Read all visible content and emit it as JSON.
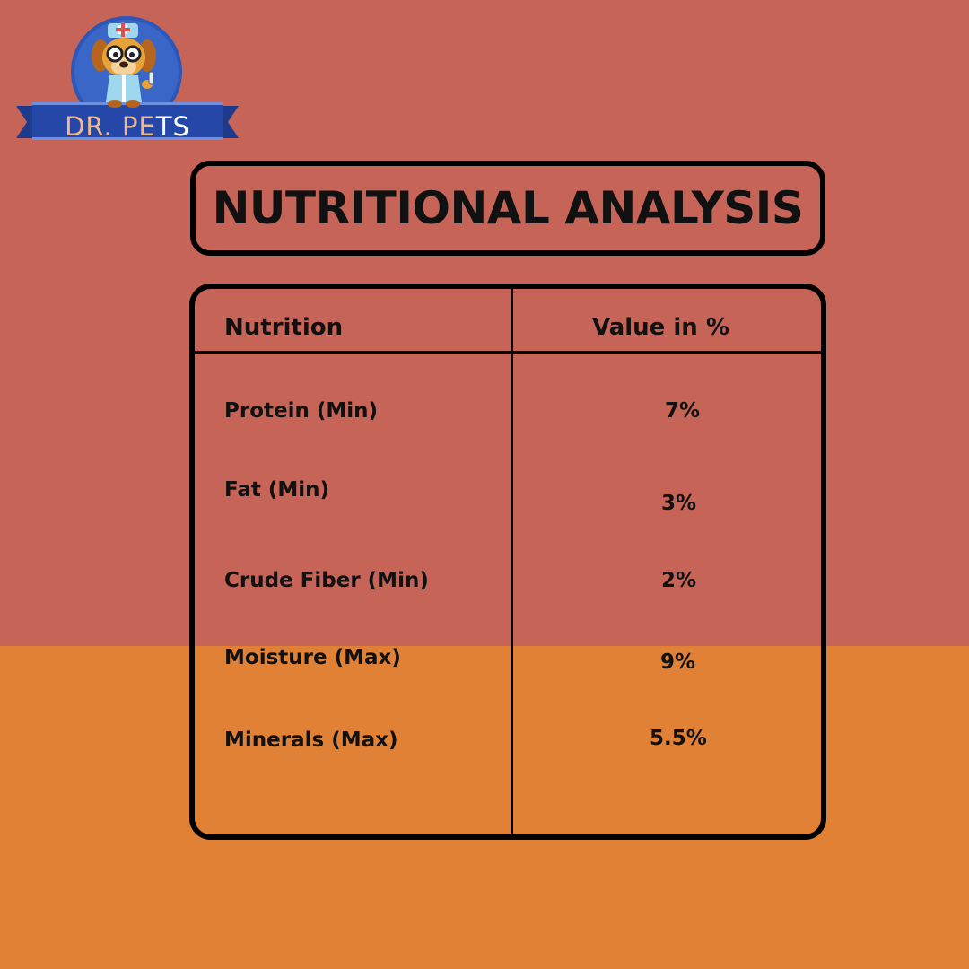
{
  "colors": {
    "background_top": "#c66557",
    "background_bottom": "#e08136",
    "border": "#000000",
    "text": "#111111",
    "logo_circle": "#2c56b8",
    "logo_ribbon": "#2548a8"
  },
  "logo": {
    "text_main": "DR. PE",
    "text_accent": "TS",
    "icon": "doctor-dog-icon"
  },
  "title": "NUTRITIONAL ANALYSIS",
  "table": {
    "headers": [
      "Nutrition",
      "Value in %"
    ],
    "rows": [
      {
        "nutrient": "Protein (Min)",
        "value": "7%"
      },
      {
        "nutrient": "Fat (Min)",
        "value": "3%"
      },
      {
        "nutrient": "Crude Fiber (Min)",
        "value": "2%"
      },
      {
        "nutrient": "Moisture (Max)",
        "value": "9%"
      },
      {
        "nutrient": "Minerals (Max)",
        "value": "5.5%"
      }
    ]
  }
}
